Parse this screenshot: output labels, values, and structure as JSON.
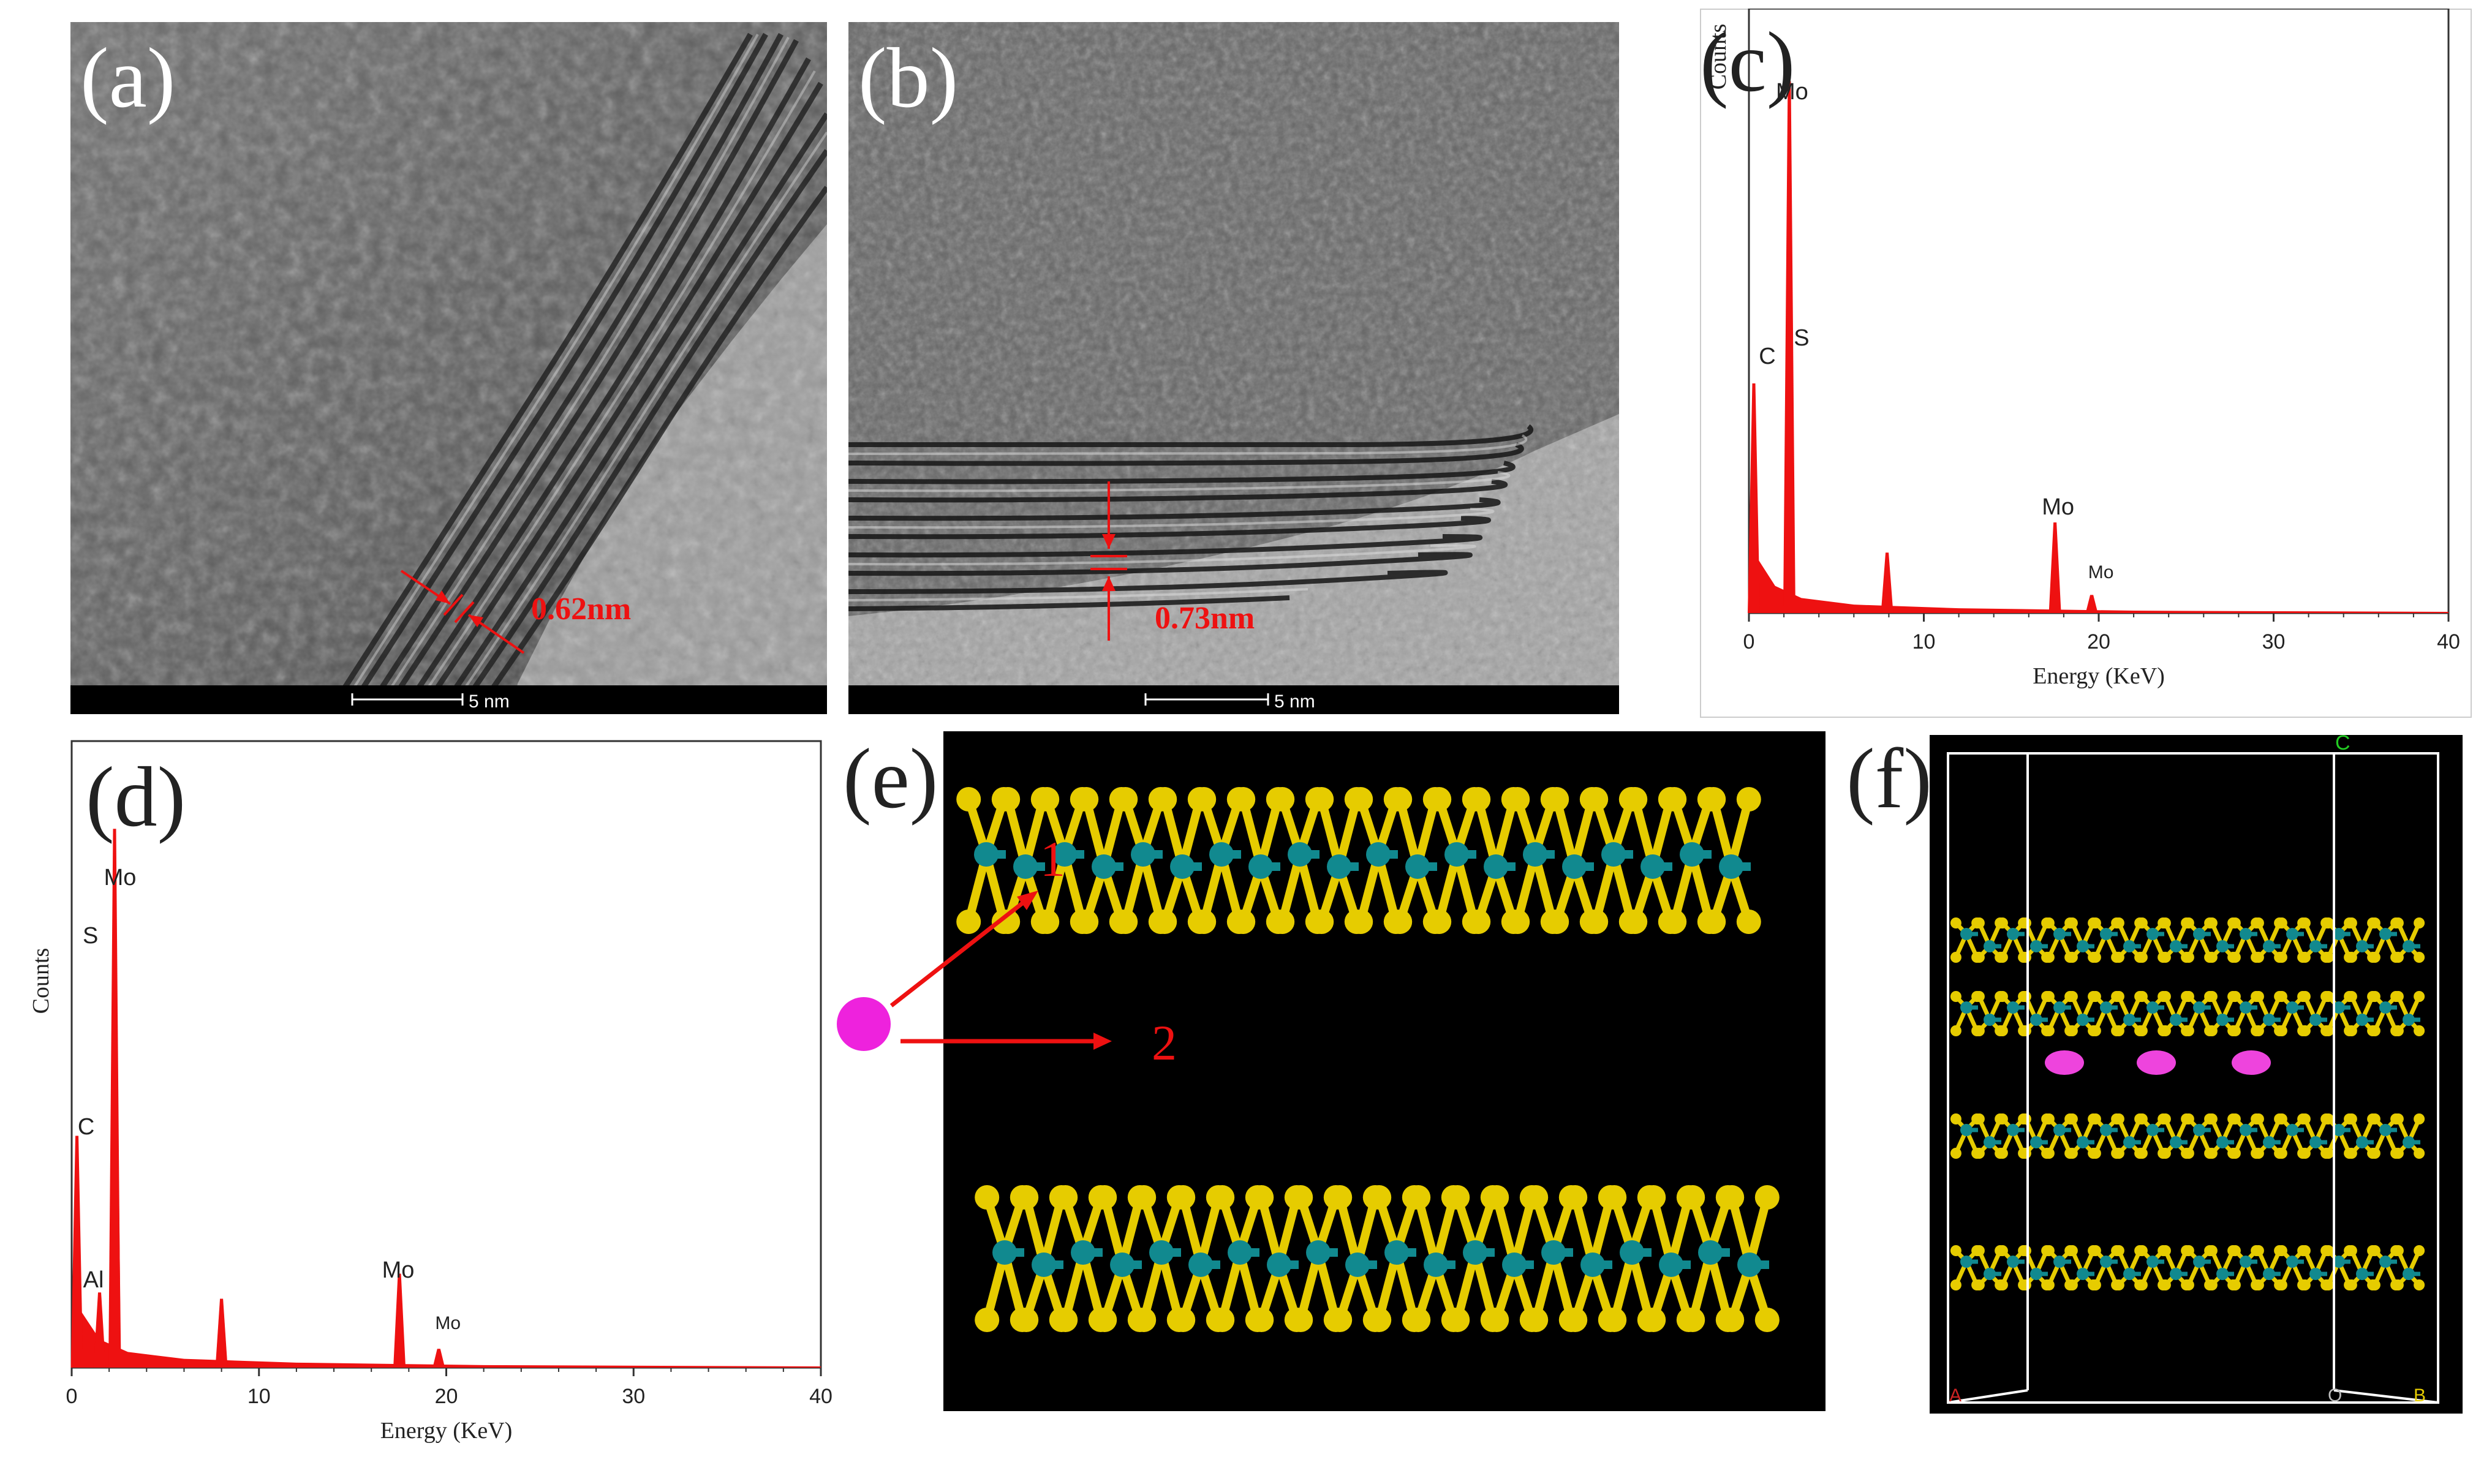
{
  "panels": {
    "a": {
      "label": "(a)",
      "measurement": "0.62nm",
      "scale_bar": "5 nm"
    },
    "b": {
      "label": "(b)",
      "measurement": "0.73nm",
      "scale_bar": "5 nm"
    },
    "c": {
      "label": "(c)"
    },
    "d": {
      "label": "(d)"
    },
    "e": {
      "label": "(e)",
      "arrow1": "1",
      "arrow2": "2"
    },
    "f": {
      "label": "(f)",
      "axis_c": "C",
      "axis_a": "A",
      "axis_o": "O",
      "axis_b": "B"
    }
  },
  "colors": {
    "spectrum": "#ee1111",
    "mo_atom": "#11898f",
    "s_atom": "#e6cc00",
    "ion": "#ee22dd",
    "annotation": "#ee1111"
  },
  "chart_data": [
    {
      "panel": "c",
      "type": "line",
      "xlabel": "Energy (KeV)",
      "ylabel": "Counts",
      "xlim": [
        0,
        40
      ],
      "x_ticks": [
        "0",
        "10",
        "20",
        "30",
        "40"
      ],
      "series": [
        {
          "x": [
            0.28,
            2.29,
            2.31,
            7.9,
            17.5,
            19.6
          ],
          "y": [
            0.38,
            0.22,
            0.88,
            0.1,
            0.15,
            0.03
          ]
        }
      ],
      "annotations": [
        {
          "text": "Mo",
          "x": 2.29
        },
        {
          "text": "S",
          "x": 2.31
        },
        {
          "text": "C",
          "x": 0.28
        },
        {
          "text": "Mo",
          "x": 17.5
        },
        {
          "text": "Mo",
          "x": 19.6
        }
      ]
    },
    {
      "panel": "d",
      "type": "line",
      "xlabel": "Energy (KeV)",
      "ylabel": "Counts",
      "xlim": [
        0,
        40
      ],
      "x_ticks": [
        "0",
        "10",
        "20",
        "30",
        "40"
      ],
      "series": [
        {
          "x": [
            0.28,
            1.49,
            2.29,
            2.31,
            8.0,
            17.5,
            19.6
          ],
          "y": [
            0.37,
            0.12,
            0.86,
            0.62,
            0.11,
            0.15,
            0.03
          ]
        }
      ],
      "annotations": [
        {
          "text": "Mo",
          "x": 2.29
        },
        {
          "text": "S",
          "x": 2.31
        },
        {
          "text": "C",
          "x": 0.28
        },
        {
          "text": "Al",
          "x": 1.49
        },
        {
          "text": "Mo",
          "x": 17.5
        },
        {
          "text": "Mo",
          "x": 19.6
        }
      ]
    }
  ]
}
